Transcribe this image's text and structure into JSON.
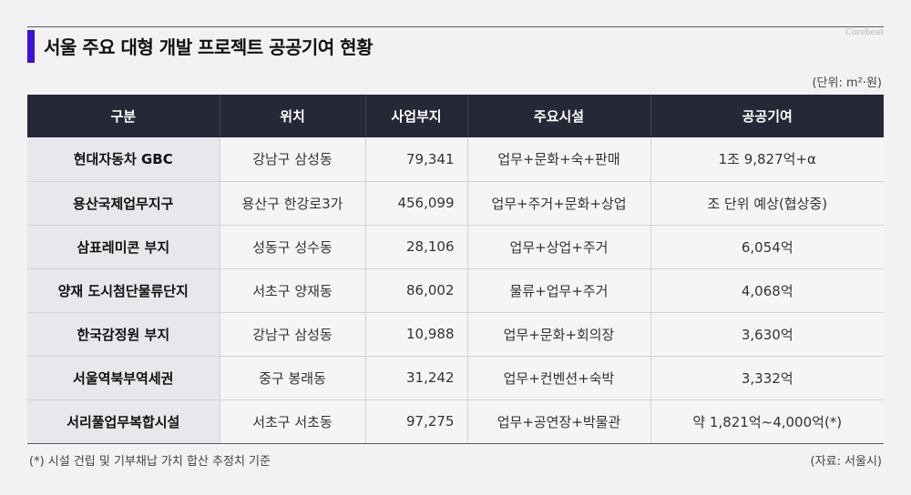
{
  "title": "서울 주요 대형 개발 프로젝트 공공기여 현황",
  "brand": "Corebeat",
  "unit": "(단위: m²·원)",
  "table": {
    "headers": [
      "구분",
      "위치",
      "사업부지",
      "주요시설",
      "공공기여"
    ],
    "rows": [
      {
        "name": "현대자동차 GBC",
        "location": "강남구 삼성동",
        "site": "79,341",
        "facilities": "업무+문화+숙+판매",
        "contribution": "1조 9,827억+α"
      },
      {
        "name": "용산국제업무지구",
        "location": "용산구 한강로3가",
        "site": "456,099",
        "facilities": "업무+주거+문화+상업",
        "contribution": "조 단위 예상(협상중)"
      },
      {
        "name": "삼표레미콘 부지",
        "location": "성동구 성수동",
        "site": "28,106",
        "facilities": "업무+상업+주거",
        "contribution": "6,054억"
      },
      {
        "name": "양재 도시첨단물류단지",
        "location": "서초구 양재동",
        "site": "86,002",
        "facilities": "물류+업무+주거",
        "contribution": "4,068억"
      },
      {
        "name": "한국감정원 부지",
        "location": "강남구 삼성동",
        "site": "10,988",
        "facilities": "업무+문화+회의장",
        "contribution": "3,630억"
      },
      {
        "name": "서울역북부역세권",
        "location": "중구 봉래동",
        "site": "31,242",
        "facilities": "업무+컨벤션+숙박",
        "contribution": "3,332억"
      },
      {
        "name": "서리풀업무복합시설",
        "location": "서초구 서초동",
        "site": "97,275",
        "facilities": "업무+공연장+박물관",
        "contribution": "약 1,821억~4,000억(*)"
      }
    ]
  },
  "footnote": "(*) 시설 건립 및 기부채납 가치 합산 추정치 기준",
  "source": "(자료: 서울시)",
  "colors": {
    "accent": "#3b10d8",
    "header_bg": "#252836",
    "first_col_bg": "#e7e7ec",
    "cell_bg": "#f5f5f7"
  }
}
